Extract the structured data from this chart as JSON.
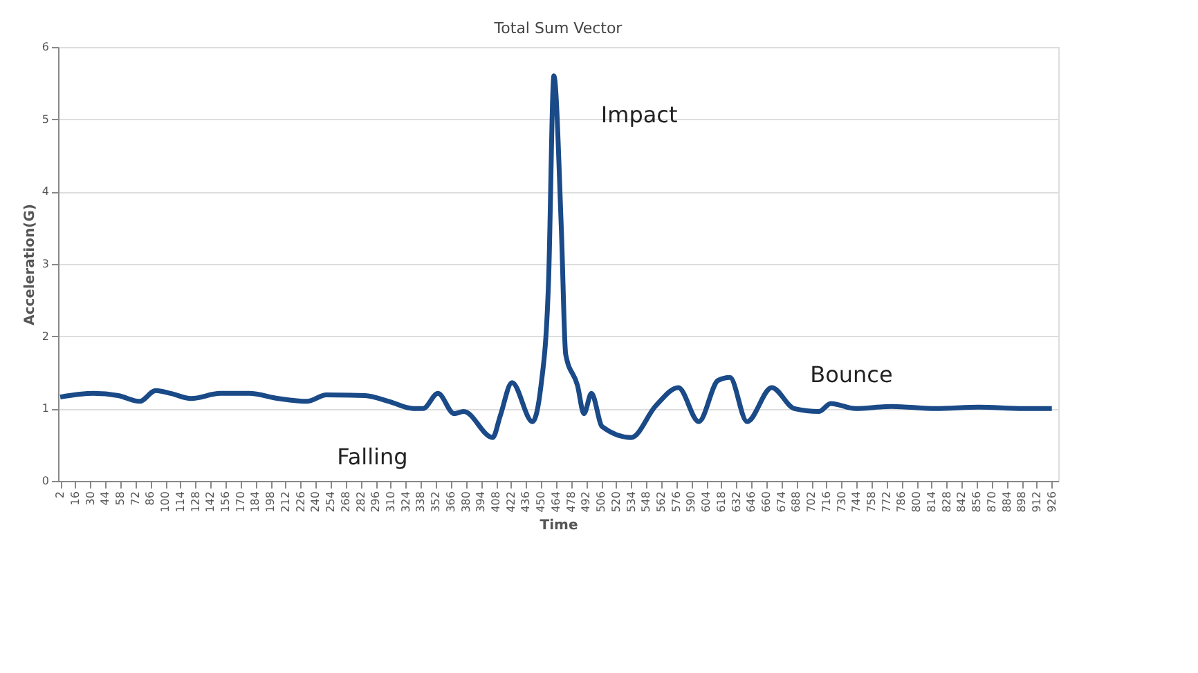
{
  "chart_data": {
    "type": "line",
    "title": "Total Sum Vector",
    "xlabel": "Time",
    "ylabel": "Acceleration(G)",
    "x": [
      2,
      33,
      56,
      76,
      91,
      105,
      124,
      151,
      178,
      205,
      232,
      250,
      286,
      308,
      331,
      340,
      354,
      369,
      378,
      405,
      412,
      423,
      442,
      450,
      457,
      462,
      469,
      473,
      484,
      490,
      497,
      507,
      534,
      557,
      578,
      597,
      615,
      626,
      642,
      665,
      686,
      709,
      720,
      743,
      777,
      818,
      858,
      899,
      926
    ],
    "series": [
      {
        "color": "#1a4a87",
        "values": [
          1.16,
          1.21,
          1.18,
          1.1,
          1.25,
          1.21,
          1.14,
          1.21,
          1.21,
          1.14,
          1.1,
          1.19,
          1.18,
          1.1,
          1.0,
          1.0,
          1.21,
          0.93,
          0.96,
          0.6,
          0.9,
          1.36,
          0.82,
          1.32,
          2.75,
          5.6,
          3.46,
          1.75,
          1.32,
          0.93,
          1.21,
          0.75,
          0.6,
          1.04,
          1.29,
          0.82,
          1.39,
          1.43,
          0.82,
          1.29,
          1.0,
          0.96,
          1.07,
          1.0,
          1.03,
          1.0,
          1.02,
          1.0,
          1.0
        ]
      }
    ],
    "xlim": [
      0,
      932
    ],
    "xticks": [
      2,
      16,
      30,
      44,
      58,
      72,
      86,
      100,
      114,
      128,
      142,
      156,
      170,
      184,
      198,
      212,
      226,
      240,
      254,
      268,
      282,
      296,
      310,
      324,
      338,
      352,
      366,
      380,
      394,
      408,
      422,
      436,
      450,
      464,
      478,
      492,
      506,
      520,
      534,
      548,
      562,
      576,
      590,
      604,
      618,
      632,
      646,
      660,
      674,
      688,
      702,
      716,
      730,
      744,
      758,
      772,
      786,
      800,
      814,
      828,
      842,
      856,
      870,
      884,
      898,
      912,
      926
    ],
    "ylim": [
      0,
      6
    ],
    "yticks": [
      0,
      1,
      2,
      3,
      4,
      5,
      6
    ],
    "grid": "y",
    "line_style": "solid",
    "marker": "none",
    "annotations": [
      "Impact",
      "Falling",
      "Bounce"
    ]
  }
}
